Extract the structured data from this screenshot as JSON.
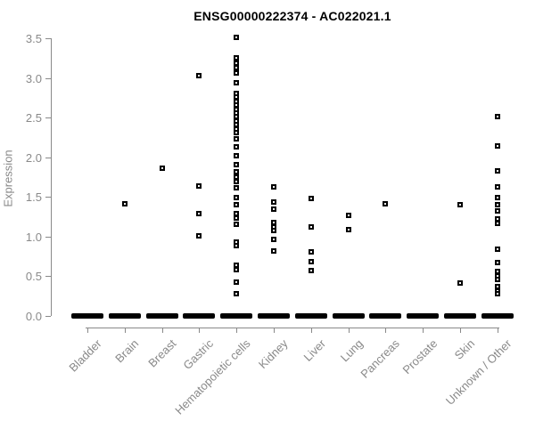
{
  "title": "ENSG00000222374 - AC022021.1",
  "chart_data": {
    "type": "scatter",
    "subtype": "strip-plot-by-category",
    "title": "ENSG00000222374 - AC022021.1",
    "xlabel": "",
    "ylabel": "Expression",
    "ylim": [
      0.0,
      3.5
    ],
    "y_ticks": [
      "0.0",
      "0.5",
      "1.0",
      "1.5",
      "2.0",
      "2.5",
      "3.0",
      "3.5"
    ],
    "grid": "off",
    "legend": "none",
    "marker": "open-square",
    "colors": {
      "points": "#000000",
      "axis": "#898989",
      "tick_labels": "#898989",
      "title": "#000000",
      "background": "#ffffff"
    },
    "categories": [
      "Bladder",
      "Brain",
      "Breast",
      "Gastric",
      "Hematopoietic cells",
      "Kidney",
      "Liver",
      "Lung",
      "Pancreas",
      "Prostate",
      "Skin",
      "Unknown / Other"
    ],
    "note": "Every category also has a dense cluster of samples at expression 0.0, drawn as a thick black bar on the baseline.",
    "series": [
      {
        "category": "Bladder",
        "zero_cluster": true,
        "values": []
      },
      {
        "category": "Brain",
        "zero_cluster": true,
        "values": [
          1.42
        ]
      },
      {
        "category": "Breast",
        "zero_cluster": true,
        "values": [
          1.86
        ]
      },
      {
        "category": "Gastric",
        "zero_cluster": true,
        "values": [
          3.03,
          1.64,
          1.29,
          1.01
        ]
      },
      {
        "category": "Hematopoietic cells",
        "zero_cluster": true,
        "values": [
          3.52,
          3.26,
          3.19,
          3.13,
          3.07,
          2.94,
          2.81,
          2.76,
          2.71,
          2.66,
          2.61,
          2.56,
          2.51,
          2.46,
          2.41,
          2.36,
          2.31,
          2.24,
          2.13,
          2.02,
          1.91,
          1.82,
          1.75,
          1.69,
          1.62,
          1.49,
          1.4,
          1.29,
          1.23,
          1.16,
          0.93,
          0.89,
          0.64,
          0.58,
          0.43,
          0.28
        ]
      },
      {
        "category": "Kidney",
        "zero_cluster": true,
        "values": [
          1.63,
          1.44,
          1.35,
          1.18,
          1.12,
          1.08,
          0.97,
          0.82
        ]
      },
      {
        "category": "Liver",
        "zero_cluster": true,
        "values": [
          1.48,
          1.12,
          0.81,
          0.68,
          0.57
        ]
      },
      {
        "category": "Lung",
        "zero_cluster": true,
        "values": [
          1.27,
          1.09
        ]
      },
      {
        "category": "Pancreas",
        "zero_cluster": true,
        "values": [
          1.41
        ]
      },
      {
        "category": "Prostate",
        "zero_cluster": true,
        "values": []
      },
      {
        "category": "Skin",
        "zero_cluster": true,
        "values": [
          1.4,
          0.41
        ]
      },
      {
        "category": "Unknown / Other",
        "zero_cluster": true,
        "values": [
          2.52,
          2.14,
          1.83,
          1.63,
          1.49,
          1.4,
          1.33,
          1.22,
          1.17,
          0.84,
          0.67,
          0.56,
          0.51,
          0.46,
          0.37,
          0.32,
          0.28
        ]
      }
    ]
  }
}
